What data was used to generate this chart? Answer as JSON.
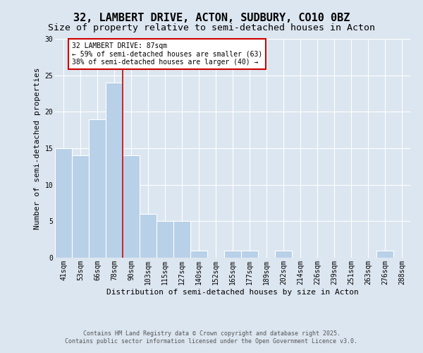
{
  "title": "32, LAMBERT DRIVE, ACTON, SUDBURY, CO10 0BZ",
  "subtitle": "Size of property relative to semi-detached houses in Acton",
  "xlabel": "Distribution of semi-detached houses by size in Acton",
  "ylabel": "Number of semi-detached properties",
  "footer1": "Contains HM Land Registry data © Crown copyright and database right 2025.",
  "footer2": "Contains public sector information licensed under the Open Government Licence v3.0.",
  "bins": [
    "41sqm",
    "53sqm",
    "66sqm",
    "78sqm",
    "90sqm",
    "103sqm",
    "115sqm",
    "127sqm",
    "140sqm",
    "152sqm",
    "165sqm",
    "177sqm",
    "189sqm",
    "202sqm",
    "214sqm",
    "226sqm",
    "239sqm",
    "251sqm",
    "263sqm",
    "276sqm",
    "288sqm"
  ],
  "values": [
    15,
    14,
    19,
    24,
    14,
    6,
    5,
    5,
    1,
    0,
    1,
    1,
    0,
    1,
    0,
    0,
    0,
    0,
    0,
    1,
    0
  ],
  "bar_color": "#b8d0e8",
  "property_line_x": 3.5,
  "property_line_color": "#cc0000",
  "annotation_text": "32 LAMBERT DRIVE: 87sqm\n← 59% of semi-detached houses are smaller (63)\n38% of semi-detached houses are larger (40) →",
  "annotation_box_color": "#ffffff",
  "annotation_box_edge_color": "#cc0000",
  "ylim": [
    0,
    30
  ],
  "yticks": [
    0,
    5,
    10,
    15,
    20,
    25,
    30
  ],
  "bg_color": "#dce6f0",
  "plot_bg_color": "#dce6f0",
  "title_fontsize": 11,
  "subtitle_fontsize": 9.5,
  "axis_label_fontsize": 8,
  "tick_fontsize": 7,
  "annotation_fontsize": 7,
  "footer_fontsize": 6
}
